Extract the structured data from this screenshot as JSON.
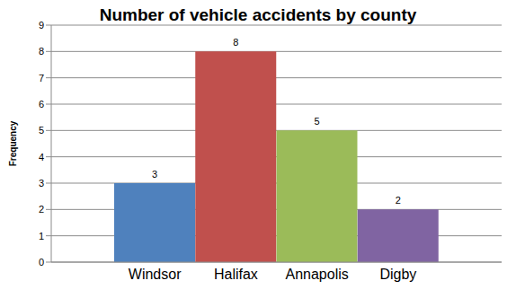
{
  "chart_data": {
    "type": "bar",
    "title": "Number of vehicle accidents by county",
    "y_label": "Frequency",
    "categories": [
      "Windsor",
      "Halifax",
      "Annapolis",
      "Digby"
    ],
    "values": [
      3,
      8,
      5,
      2
    ],
    "colors": [
      "#4f81bd",
      "#c0504d",
      "#9bbb59",
      "#8064a2"
    ],
    "ylim": [
      0,
      9
    ],
    "yticks": [
      0,
      1,
      2,
      3,
      4,
      5,
      6,
      7,
      8,
      9
    ],
    "grid": true,
    "data_labels": true
  }
}
